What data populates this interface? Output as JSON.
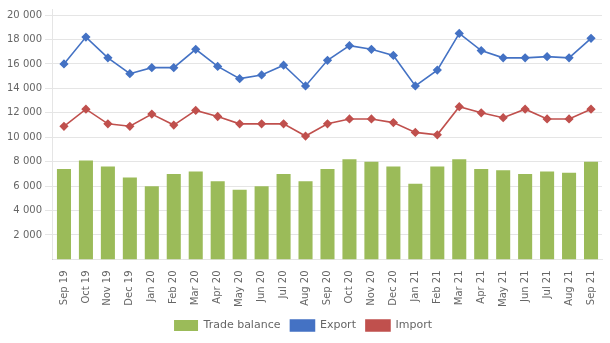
{
  "chart_data": {
    "type": "bar",
    "categories": [
      "Sep 19",
      "Oct 19",
      "Nov 19",
      "Dec 19",
      "Jan 20",
      "Feb 20",
      "Mar 20",
      "Apr 20",
      "May 20",
      "Jun 20",
      "Jul 20",
      "Aug 20",
      "Sep 20",
      "Oct 20",
      "Nov 20",
      "Dec 20",
      "Jan 21",
      "Feb 21",
      "Mar 21",
      "Apr 21",
      "May 21",
      "Jun 21",
      "Jul 21",
      "Aug 21",
      "Sep 21"
    ],
    "series": [
      {
        "name": "Trade balance",
        "type": "bar",
        "color": "#9BBB59",
        "values": [
          7400,
          8100,
          7600,
          6700,
          6000,
          7000,
          7200,
          6400,
          5700,
          6000,
          7000,
          6400,
          7400,
          8200,
          8000,
          7600,
          6200,
          7600,
          8200,
          7400,
          7300,
          7000,
          7200,
          7100,
          8000
        ]
      },
      {
        "name": "Export",
        "type": "line",
        "color": "#4472C4",
        "marker": "diamond",
        "values": [
          16000,
          18200,
          16500,
          15200,
          15700,
          15700,
          17200,
          15800,
          14800,
          15100,
          15900,
          14200,
          16300,
          17500,
          17200,
          16700,
          14200,
          15500,
          18500,
          17100,
          16500,
          16500,
          16600,
          16500,
          18100
        ]
      },
      {
        "name": "Import",
        "type": "line",
        "color": "#C0504D",
        "marker": "diamond",
        "values": [
          10900,
          12300,
          11100,
          10900,
          11900,
          11000,
          12200,
          11700,
          11100,
          11100,
          11100,
          10100,
          11100,
          11500,
          11500,
          11200,
          10400,
          10200,
          12500,
          12000,
          11600,
          12300,
          11500,
          11500,
          12300
        ]
      }
    ],
    "ylim": [
      0,
      20500
    ],
    "yticks": [
      {
        "value": 2000,
        "label": "2 000"
      },
      {
        "value": 4000,
        "label": "4 000"
      },
      {
        "value": 6000,
        "label": "6 000"
      },
      {
        "value": 8000,
        "label": "8 000"
      },
      {
        "value": 10000,
        "label": "10 000"
      },
      {
        "value": 12000,
        "label": "12 000"
      },
      {
        "value": 14000,
        "label": "14 000"
      },
      {
        "value": 16000,
        "label": "16 000"
      },
      {
        "value": 18000,
        "label": "18 000"
      },
      {
        "value": 20000,
        "label": "20 000"
      }
    ],
    "grid": "y",
    "legend": "bottom"
  }
}
